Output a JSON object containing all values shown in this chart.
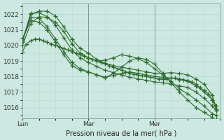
{
  "bg_color": "#cce8e0",
  "grid_color": "#b8ddd6",
  "line_color": "#2d6a2d",
  "marker_color": "#2d6a2d",
  "ylabel_values": [
    1016,
    1017,
    1018,
    1019,
    1020,
    1021,
    1022
  ],
  "ylim": [
    1015.3,
    1022.7
  ],
  "xlim": [
    0,
    48
  ],
  "xlabel": "Pression niveau de la mer( hPa )",
  "xtick_positions": [
    0,
    16,
    32
  ],
  "xtick_labels": [
    "Lun",
    "Mar",
    "Mer"
  ],
  "series": [
    {
      "x": [
        0,
        1,
        2,
        3,
        4,
        5,
        6,
        7,
        8,
        9,
        10,
        11,
        12,
        13,
        14,
        15,
        16,
        17,
        18,
        19,
        20,
        21,
        22,
        23,
        24,
        25,
        26,
        27,
        28,
        29,
        30,
        31,
        32,
        33,
        34,
        35,
        36,
        37,
        38,
        39,
        40,
        41,
        42,
        43,
        44,
        45,
        46,
        47
      ],
      "y": [
        1019.6,
        1020.1,
        1020.3,
        1020.4,
        1020.4,
        1020.3,
        1020.2,
        1020.1,
        1020.0,
        1019.9,
        1019.8,
        1019.7,
        1019.6,
        1019.5,
        1019.4,
        1019.3,
        1019.2,
        1019.1,
        1019.0,
        1018.9,
        1018.8,
        1018.7,
        1018.6,
        1018.5,
        1018.4,
        1018.3,
        1018.2,
        1018.15,
        1018.1,
        1018.05,
        1018.0,
        1017.95,
        1017.9,
        1017.85,
        1017.85,
        1017.85,
        1017.9,
        1017.9,
        1017.85,
        1017.8,
        1017.75,
        1017.65,
        1017.5,
        1017.3,
        1017.1,
        1016.9,
        1016.5,
        1015.8
      ]
    },
    {
      "x": [
        0,
        2,
        4,
        6,
        8,
        10,
        12,
        14,
        16,
        18,
        20,
        22,
        24,
        26,
        28,
        30,
        32,
        34,
        36,
        38,
        40,
        42,
        44,
        46,
        47
      ],
      "y": [
        1020.0,
        1021.4,
        1021.85,
        1021.8,
        1021.5,
        1020.9,
        1020.1,
        1019.5,
        1019.2,
        1019.0,
        1019.05,
        1019.2,
        1019.4,
        1019.3,
        1019.15,
        1018.9,
        1018.5,
        1018.1,
        1017.7,
        1017.2,
        1016.9,
        1016.5,
        1016.1,
        1015.6,
        1015.5
      ]
    },
    {
      "x": [
        0,
        2,
        4,
        6,
        8,
        10,
        12,
        14,
        16,
        18,
        20,
        22,
        24,
        26,
        28,
        30,
        32,
        34,
        36,
        38,
        40,
        42,
        44,
        46,
        47
      ],
      "y": [
        1020.2,
        1022.0,
        1022.2,
        1022.2,
        1021.9,
        1021.2,
        1020.4,
        1019.8,
        1019.5,
        1019.1,
        1018.85,
        1018.7,
        1018.6,
        1018.5,
        1018.4,
        1018.3,
        1018.2,
        1018.2,
        1018.25,
        1018.2,
        1018.1,
        1017.85,
        1017.5,
        1016.8,
        1015.9
      ]
    },
    {
      "x": [
        0,
        2,
        4,
        6,
        8,
        10,
        12,
        14,
        16,
        18,
        20,
        22,
        24,
        26,
        28,
        30,
        32,
        34,
        36,
        38,
        40,
        42,
        44,
        46,
        47
      ],
      "y": [
        1020.3,
        1022.05,
        1022.1,
        1021.85,
        1021.3,
        1020.5,
        1019.7,
        1019.2,
        1018.9,
        1018.65,
        1018.4,
        1018.25,
        1018.1,
        1017.95,
        1017.85,
        1017.75,
        1017.65,
        1017.6,
        1017.5,
        1017.4,
        1017.3,
        1017.0,
        1016.6,
        1016.1,
        1015.8
      ]
    },
    {
      "x": [
        0,
        2,
        4,
        6,
        8,
        10,
        12,
        14,
        16,
        18,
        20,
        22,
        24,
        26,
        28,
        30,
        32,
        34,
        36,
        38,
        40,
        42,
        44,
        46,
        47
      ],
      "y": [
        1020.4,
        1021.8,
        1021.75,
        1021.2,
        1020.4,
        1019.6,
        1018.9,
        1018.5,
        1018.3,
        1018.1,
        1017.95,
        1018.05,
        1018.2,
        1018.3,
        1018.2,
        1018.1,
        1018.0,
        1017.95,
        1017.9,
        1017.8,
        1017.7,
        1017.4,
        1017.0,
        1016.5,
        1016.1
      ]
    },
    {
      "x": [
        0,
        2,
        4,
        6,
        8,
        10,
        12,
        14,
        16,
        18,
        20,
        22,
        24,
        26,
        28,
        30,
        32,
        34,
        36,
        38,
        40,
        42,
        44,
        46,
        47
      ],
      "y": [
        1020.4,
        1021.6,
        1021.5,
        1021.0,
        1020.2,
        1019.4,
        1018.7,
        1018.4,
        1018.3,
        1018.1,
        1017.9,
        1018.2,
        1018.6,
        1019.0,
        1019.2,
        1019.1,
        1018.8,
        1018.2,
        1017.6,
        1017.0,
        1016.5,
        1016.0,
        1015.7,
        1015.35,
        1015.2
      ]
    }
  ]
}
